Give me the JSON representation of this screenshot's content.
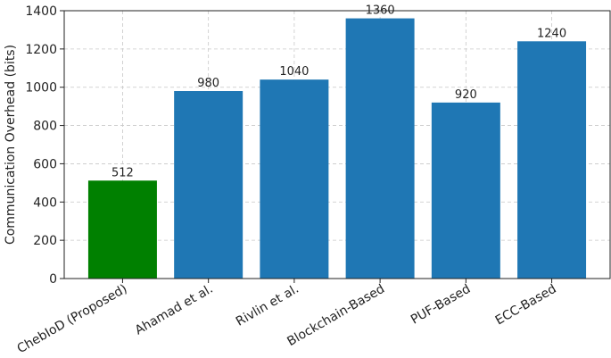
{
  "chart_data": {
    "type": "bar",
    "y_label": "Communication Overhead (bits)",
    "categories": [
      "ChebIoD (Proposed)",
      "Ahamad et al.",
      "Rivlin et al.",
      "Blockchain-Based",
      "PUF-Based",
      "ECC-Based"
    ],
    "values": [
      512,
      980,
      1040,
      1360,
      920,
      1240
    ],
    "colors": [
      "#008000",
      "#1f77b4",
      "#1f77b4",
      "#1f77b4",
      "#1f77b4",
      "#1f77b4"
    ],
    "ylim": [
      0,
      1400
    ],
    "yticks": [
      0,
      200,
      400,
      600,
      800,
      1000,
      1200,
      1400
    ],
    "grid": true
  }
}
